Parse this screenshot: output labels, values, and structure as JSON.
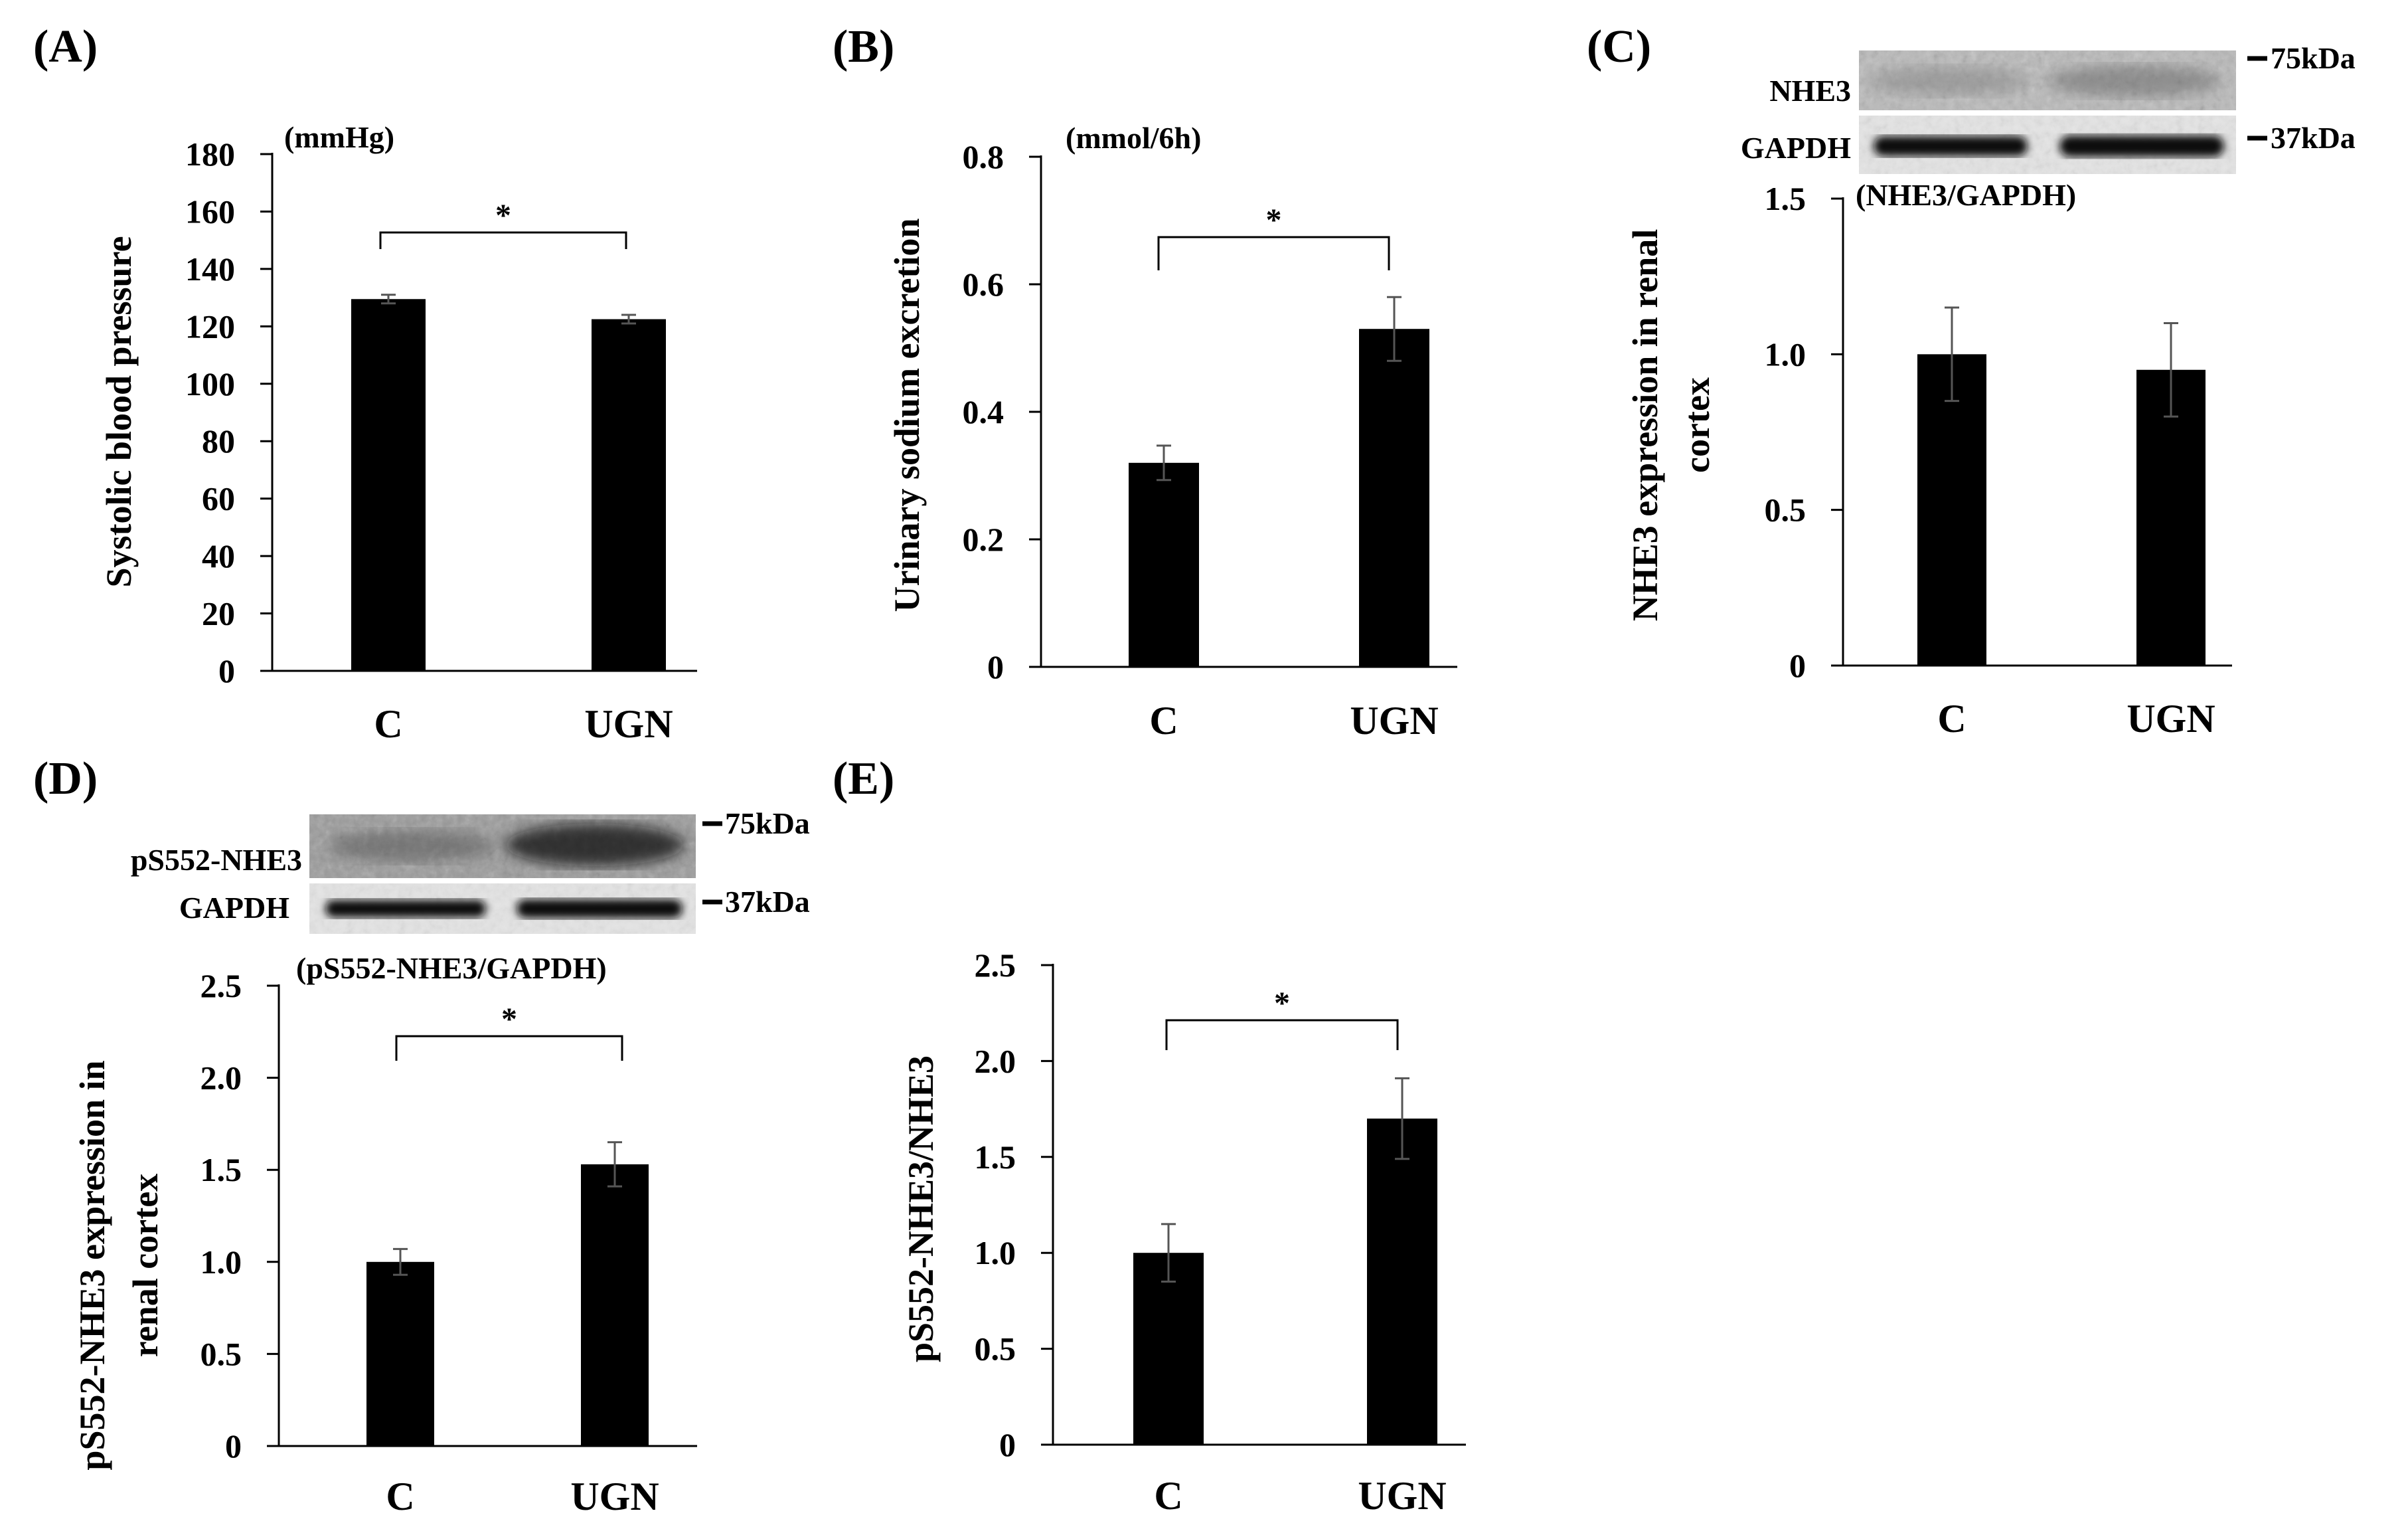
{
  "figure": {
    "blot_c": {
      "top_label": "NHE3",
      "bottom_label": "GAPDH",
      "top_marker": "75kDa",
      "bottom_marker": "37kDa"
    },
    "blot_d": {
      "top_label": "pS552-NHE3",
      "bottom_label": "GAPDH",
      "top_marker": "75kDa",
      "bottom_marker": "37kDa"
    }
  },
  "chart_data": [
    {
      "panel": "(A)",
      "type": "bar",
      "categories": [
        "C",
        "UGN"
      ],
      "values": [
        129.5,
        122.5
      ],
      "errors": [
        1.5,
        1.5
      ],
      "ylabel": "Systolic blood pressure",
      "unit": "(mmHg)",
      "ylim": [
        0,
        180
      ],
      "yticks": [
        0,
        20,
        40,
        60,
        80,
        100,
        120,
        140,
        160,
        180
      ],
      "tick_labels": [
        "0",
        "20",
        "40",
        "60",
        "80",
        "100",
        "120",
        "140",
        "160",
        "180"
      ],
      "significance": "*",
      "grid": false
    },
    {
      "panel": "(B)",
      "type": "bar",
      "categories": [
        "C",
        "UGN"
      ],
      "values": [
        0.32,
        0.53
      ],
      "errors": [
        0.027,
        0.05
      ],
      "ylabel": "Urinary sodium excretion",
      "unit": "(mmol/6h)",
      "ylim": [
        0,
        0.8
      ],
      "yticks": [
        0,
        0.2,
        0.4,
        0.6,
        0.8
      ],
      "tick_labels": [
        "0",
        "0.2",
        "0.4",
        "0.6",
        "0.8"
      ],
      "significance": "*",
      "grid": false
    },
    {
      "panel": "(C)",
      "type": "bar",
      "categories": [
        "C",
        "UGN"
      ],
      "values": [
        1.0,
        0.95
      ],
      "errors": [
        0.15,
        0.15
      ],
      "ylabel": [
        "NHE3 expression in renal",
        "cortex"
      ],
      "unit": "(NHE3/GAPDH)",
      "ylim": [
        0,
        1.5
      ],
      "yticks": [
        0,
        0.5,
        1.0,
        1.5
      ],
      "tick_labels": [
        "0",
        "0.5",
        "1.0",
        "1.5"
      ],
      "significance": "",
      "grid": false
    },
    {
      "panel": "(D)",
      "type": "bar",
      "categories": [
        "C",
        "UGN"
      ],
      "values": [
        1.0,
        1.53
      ],
      "errors": [
        0.07,
        0.12
      ],
      "ylabel": [
        "pS552-NHE3 expression in",
        "renal cortex"
      ],
      "unit": "(pS552-NHE3/GAPDH)",
      "ylim": [
        0,
        2.5
      ],
      "yticks": [
        0,
        0.5,
        1.0,
        1.5,
        2.0,
        2.5
      ],
      "tick_labels": [
        "0",
        "0.5",
        "1.0",
        "1.5",
        "2.0",
        "2.5"
      ],
      "significance": "*",
      "grid": false
    },
    {
      "panel": "(E)",
      "type": "bar",
      "categories": [
        "C",
        "UGN"
      ],
      "values": [
        1.0,
        1.7
      ],
      "errors": [
        0.15,
        0.21
      ],
      "ylabel": "pS552-NHE3/NHE3",
      "unit": "",
      "ylim": [
        0,
        2.5
      ],
      "yticks": [
        0,
        0.5,
        1.0,
        1.5,
        2.0,
        2.5
      ],
      "tick_labels": [
        "0",
        "0.5",
        "1.0",
        "1.5",
        "2.0",
        "2.5"
      ],
      "significance": "*",
      "grid": false
    }
  ]
}
